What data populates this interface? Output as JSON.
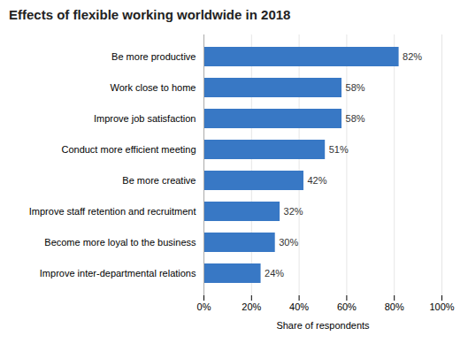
{
  "chart_data": {
    "type": "bar",
    "orientation": "horizontal",
    "title": "Effects of flexible working worldwide in 2018",
    "categories": [
      "Improve inter-departmental relations",
      "Become more loyal to the business",
      "Improve staff retention and recruitment",
      "Be more creative",
      "Conduct more efficient meeting",
      "Improve job satisfaction",
      "Work close to home",
      "Be more productive"
    ],
    "values": [
      24,
      30,
      32,
      42,
      51,
      58,
      58,
      82
    ],
    "value_labels": [
      "24%",
      "30%",
      "32%",
      "42%",
      "51%",
      "58%",
      "58%",
      "82%"
    ],
    "data_labels": true,
    "color": "#3878c5",
    "xlabel": "Share of respondents",
    "xlim": [
      0,
      100
    ],
    "xticks": [
      {
        "value": 0,
        "label": "0%"
      },
      {
        "value": 20,
        "label": "20%"
      },
      {
        "value": 40,
        "label": "40%"
      },
      {
        "value": 60,
        "label": "60%"
      },
      {
        "value": 80,
        "label": "80%"
      },
      {
        "value": 100,
        "label": "100%"
      }
    ],
    "grid": true
  }
}
